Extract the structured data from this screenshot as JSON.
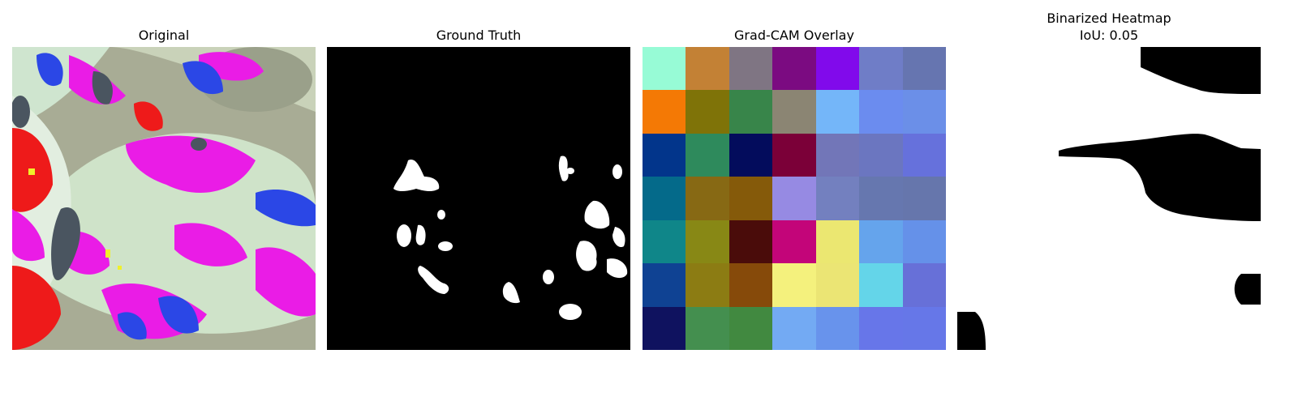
{
  "panels": [
    {
      "title": "Original"
    },
    {
      "title": "Ground Truth"
    },
    {
      "title": "Grad-CAM Overlay"
    },
    {
      "title_line1": "Binarized Heatmap",
      "title_line2": "IoU: 0.05"
    }
  ],
  "gradcam_grid": [
    [
      "#97fbd6",
      "#c38135",
      "#7f7583",
      "#7b0b81",
      "#810aeb",
      "#6f7dc7",
      "#6675b0"
    ],
    [
      "#f47905",
      "#7f7308",
      "#38854a",
      "#8b8573",
      "#74b6f9",
      "#6b8cef",
      "#6b8fe8"
    ],
    [
      "#02358b",
      "#2e8a5c",
      "#030c5c",
      "#7b0038",
      "#7276b8",
      "#6b76c0",
      "#6671dc"
    ],
    [
      "#046a8a",
      "#876914",
      "#855a0a",
      "#968ae3",
      "#7380bf",
      "#6677af",
      "#6676ac"
    ],
    [
      "#0f8689",
      "#888815",
      "#4a0c0a",
      "#c30579",
      "#ebe771",
      "#65a4ec",
      "#6591e9"
    ],
    [
      "#0f4293",
      "#8c7c13",
      "#864a0a",
      "#f4f17d",
      "#ebe574",
      "#64d5e9",
      "#6770d8"
    ],
    [
      "#0f125f",
      "#448f4f",
      "#418940",
      "#73aaf3",
      "#6893ec",
      "#6776e9",
      "#6677e8"
    ]
  ]
}
